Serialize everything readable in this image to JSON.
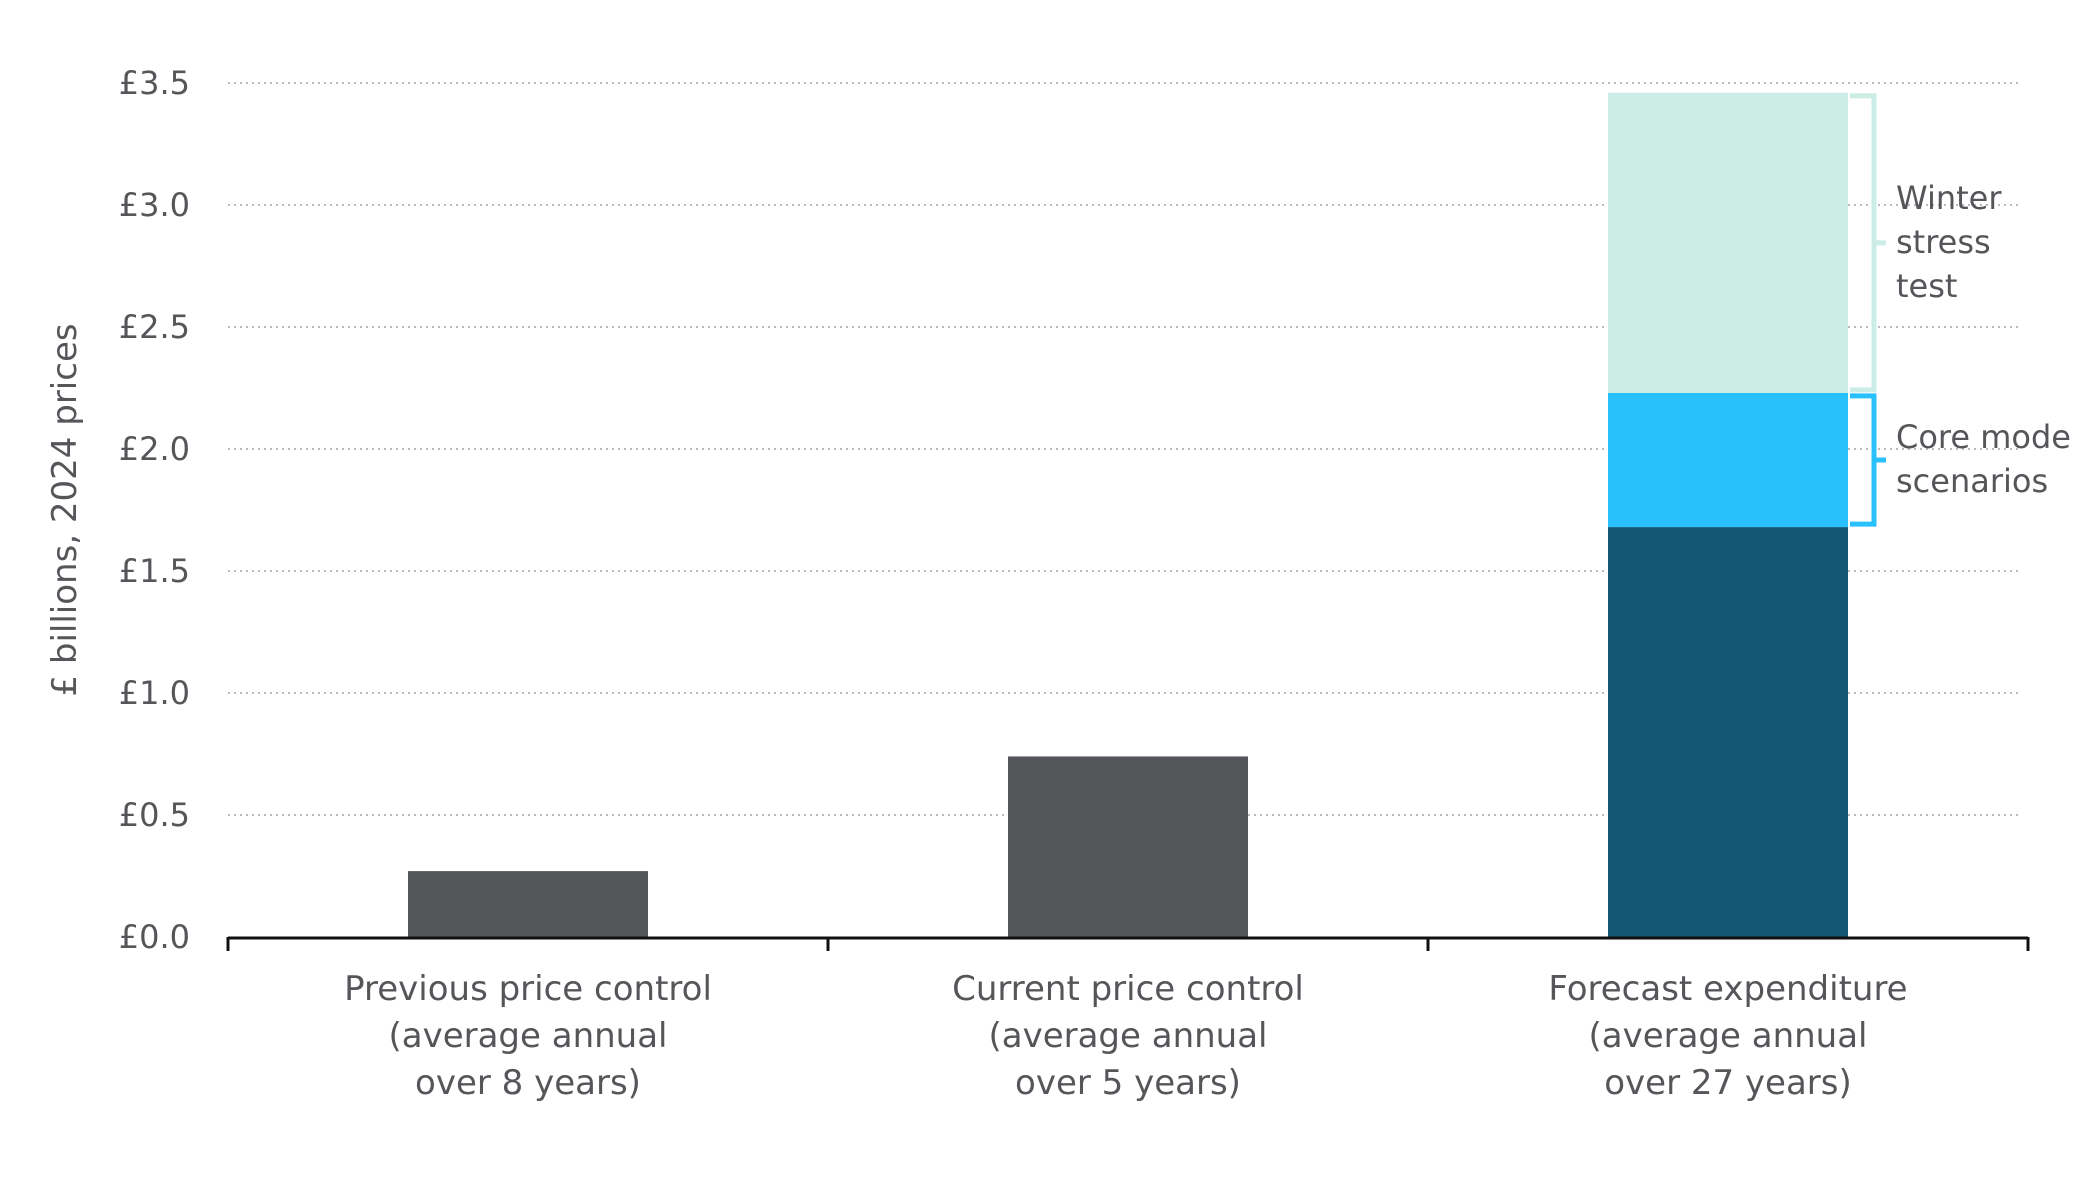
{
  "chart_data": {
    "type": "bar",
    "title": "",
    "ylabel": "£ billions, 2024 prices",
    "xlabel": "",
    "ylim": [
      0,
      3.5
    ],
    "yticks": [
      0,
      0.5,
      1.0,
      1.5,
      2.0,
      2.5,
      3.0,
      3.5
    ],
    "ytick_labels": [
      "£0.0",
      "£0.5",
      "£1.0",
      "£1.5",
      "£2.0",
      "£2.5",
      "£3.0",
      "£3.5"
    ],
    "grid": true,
    "categories": [
      [
        "Previous price control",
        "(average annual",
        "over 8 years)"
      ],
      [
        "Current price control",
        "(average annual",
        "over 5 years)"
      ],
      [
        "Forecast expenditure",
        "(average annual",
        "over 27 years)"
      ]
    ],
    "bars": [
      {
        "segments": [
          {
            "value": 0.27,
            "color": "#55565a"
          }
        ]
      },
      {
        "segments": [
          {
            "value": 0.74,
            "color": "#55565a"
          }
        ]
      },
      {
        "segments": [
          {
            "value": 1.68,
            "color": "#135673"
          },
          {
            "value": 0.55,
            "color": "#29c1fb"
          },
          {
            "value": 1.23,
            "color": "#ccede6"
          }
        ]
      }
    ],
    "annotations": [
      {
        "label": [
          "Winter",
          "stress",
          "test"
        ],
        "from": 2.23,
        "to": 3.46,
        "color": "#ccede6"
      },
      {
        "label": [
          "Core model",
          "scenarios"
        ],
        "from": 1.68,
        "to": 2.23,
        "color": "#29c1fb"
      }
    ]
  }
}
